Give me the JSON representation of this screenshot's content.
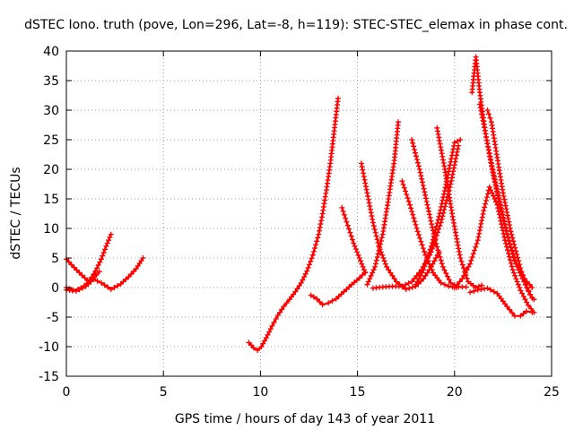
{
  "chart_data": {
    "type": "scatter",
    "title": "dSTEC Iono. truth (pove, Lon=296, Lat=-8, h=119): STEC-STEC_elemax in phase cont.",
    "xlabel": "GPS time / hours of day 143 of year 2011",
    "ylabel": "dSTEC  / TECUs",
    "xlim": [
      0,
      25
    ],
    "ylim": [
      -15,
      40
    ],
    "xticks": [
      0,
      5,
      10,
      15,
      20,
      25
    ],
    "yticks": [
      -15,
      -10,
      -5,
      0,
      5,
      10,
      15,
      20,
      25,
      30,
      35,
      40
    ],
    "grid": true,
    "marker": "+",
    "color": "#ff0000",
    "series": [
      {
        "x": [
          0.0,
          0.3,
          0.6,
          0.9,
          1.2,
          1.5,
          1.8,
          2.05,
          2.3
        ],
        "y": [
          0.0,
          -0.4,
          -0.3,
          0.2,
          1.2,
          2.8,
          4.8,
          7.0,
          9.0
        ]
      },
      {
        "x": [
          0.0,
          0.4,
          0.8,
          1.1,
          1.4,
          1.7
        ],
        "y": [
          4.8,
          3.4,
          2.1,
          1.2,
          1.5,
          2.7
        ]
      },
      {
        "x": [
          0.0,
          0.5,
          1.0,
          1.4,
          1.8,
          2.3,
          2.8,
          3.2,
          3.6,
          3.95
        ],
        "y": [
          -0.4,
          -0.6,
          0.2,
          1.4,
          0.8,
          -0.3,
          0.6,
          1.8,
          3.2,
          5.0
        ]
      },
      {
        "x": [
          9.4,
          9.65,
          9.85,
          10.05,
          10.3,
          10.6,
          10.9,
          11.2,
          11.5,
          11.8,
          12.1,
          12.4,
          12.7,
          13.0,
          13.2,
          13.4,
          13.6,
          13.8,
          14.0
        ],
        "y": [
          -9.3,
          -10.2,
          -10.6,
          -10.0,
          -8.5,
          -6.5,
          -4.7,
          -3.2,
          -2.0,
          -0.7,
          0.8,
          2.8,
          5.5,
          9.0,
          12.5,
          16.5,
          21.0,
          26.5,
          32.0
        ]
      },
      {
        "x": [
          12.6,
          12.9,
          13.2,
          13.5,
          13.9,
          14.3,
          14.7,
          15.1,
          15.4
        ],
        "y": [
          -1.3,
          -1.9,
          -2.9,
          -2.6,
          -1.9,
          -0.7,
          0.5,
          1.6,
          2.6
        ]
      },
      {
        "x": [
          14.2,
          14.5,
          14.8,
          15.1,
          15.4
        ],
        "y": [
          13.5,
          10.5,
          7.5,
          5.0,
          2.5
        ]
      },
      {
        "x": [
          15.2,
          15.5,
          15.8,
          16.1,
          16.5,
          17.0,
          17.5,
          18.0,
          18.4,
          18.8,
          19.2
        ],
        "y": [
          21.0,
          16.0,
          11.0,
          7.0,
          3.5,
          1.0,
          -0.3,
          0.2,
          1.5,
          3.5,
          6.0
        ]
      },
      {
        "x": [
          15.5,
          15.9,
          16.3,
          16.6,
          16.9,
          17.1
        ],
        "y": [
          0.5,
          3.5,
          9.0,
          15.0,
          21.5,
          28.0
        ]
      },
      {
        "x": [
          15.8,
          16.3,
          16.8,
          17.3,
          17.8,
          18.3,
          18.8,
          19.3,
          19.8,
          20.2
        ],
        "y": [
          -0.1,
          0.1,
          0.2,
          0.2,
          1.0,
          3.0,
          6.0,
          11.0,
          17.5,
          24.0
        ]
      },
      {
        "x": [
          17.3,
          17.7,
          18.1,
          18.5,
          18.9,
          19.3,
          19.7,
          20.1
        ],
        "y": [
          18.0,
          14.0,
          9.5,
          5.5,
          2.5,
          0.8,
          0.2,
          0.0
        ]
      },
      {
        "x": [
          17.8,
          18.2,
          18.6,
          19.0,
          19.4,
          19.8,
          20.2,
          20.6
        ],
        "y": [
          25.0,
          20.0,
          14.0,
          8.0,
          3.5,
          0.8,
          0.1,
          0.1
        ]
      },
      {
        "x": [
          18.0,
          18.4,
          18.8,
          19.2,
          19.6,
          20.0,
          20.3
        ],
        "y": [
          0.5,
          3.0,
          7.0,
          12.0,
          18.0,
          24.5,
          25.0
        ]
      },
      {
        "x": [
          19.1,
          19.5,
          19.9,
          20.3,
          20.7,
          21.1,
          21.4
        ],
        "y": [
          27.0,
          20.0,
          12.0,
          5.0,
          1.0,
          0.0,
          0.4
        ]
      },
      {
        "x": [
          20.0,
          20.4,
          20.8,
          21.2,
          21.5,
          21.8,
          22.2,
          22.6,
          23.0,
          23.4,
          23.8,
          24.1
        ],
        "y": [
          0.0,
          1.5,
          4.0,
          8.0,
          13.0,
          17.0,
          14.0,
          8.0,
          3.0,
          -0.5,
          -3.0,
          -4.2
        ]
      },
      {
        "x": [
          20.9,
          21.1,
          21.3,
          21.6,
          22.0,
          22.4,
          22.8,
          23.2,
          23.6,
          24.0
        ],
        "y": [
          33.0,
          39.0,
          33.0,
          26.0,
          19.0,
          13.0,
          8.0,
          4.0,
          1.5,
          0.0
        ]
      },
      {
        "x": [
          21.3,
          21.6,
          21.9,
          22.3,
          22.7,
          23.1,
          23.5,
          23.8,
          24.0
        ],
        "y": [
          31.0,
          26.0,
          21.0,
          15.0,
          9.0,
          4.5,
          1.5,
          -0.5,
          -1.8
        ]
      },
      {
        "x": [
          21.7,
          21.9,
          22.2,
          22.5,
          22.9,
          23.3,
          23.6,
          23.9,
          24.1
        ],
        "y": [
          30.0,
          28.0,
          22.0,
          16.0,
          9.5,
          4.5,
          1.0,
          -1.2,
          -2.0
        ]
      },
      {
        "x": [
          20.8,
          21.2,
          21.7,
          22.2,
          22.7,
          23.1,
          23.4,
          23.7,
          24.0
        ],
        "y": [
          -0.8,
          -0.4,
          -0.1,
          -1.0,
          -3.2,
          -4.8,
          -4.8,
          -4.0,
          -4.2
        ]
      }
    ]
  }
}
